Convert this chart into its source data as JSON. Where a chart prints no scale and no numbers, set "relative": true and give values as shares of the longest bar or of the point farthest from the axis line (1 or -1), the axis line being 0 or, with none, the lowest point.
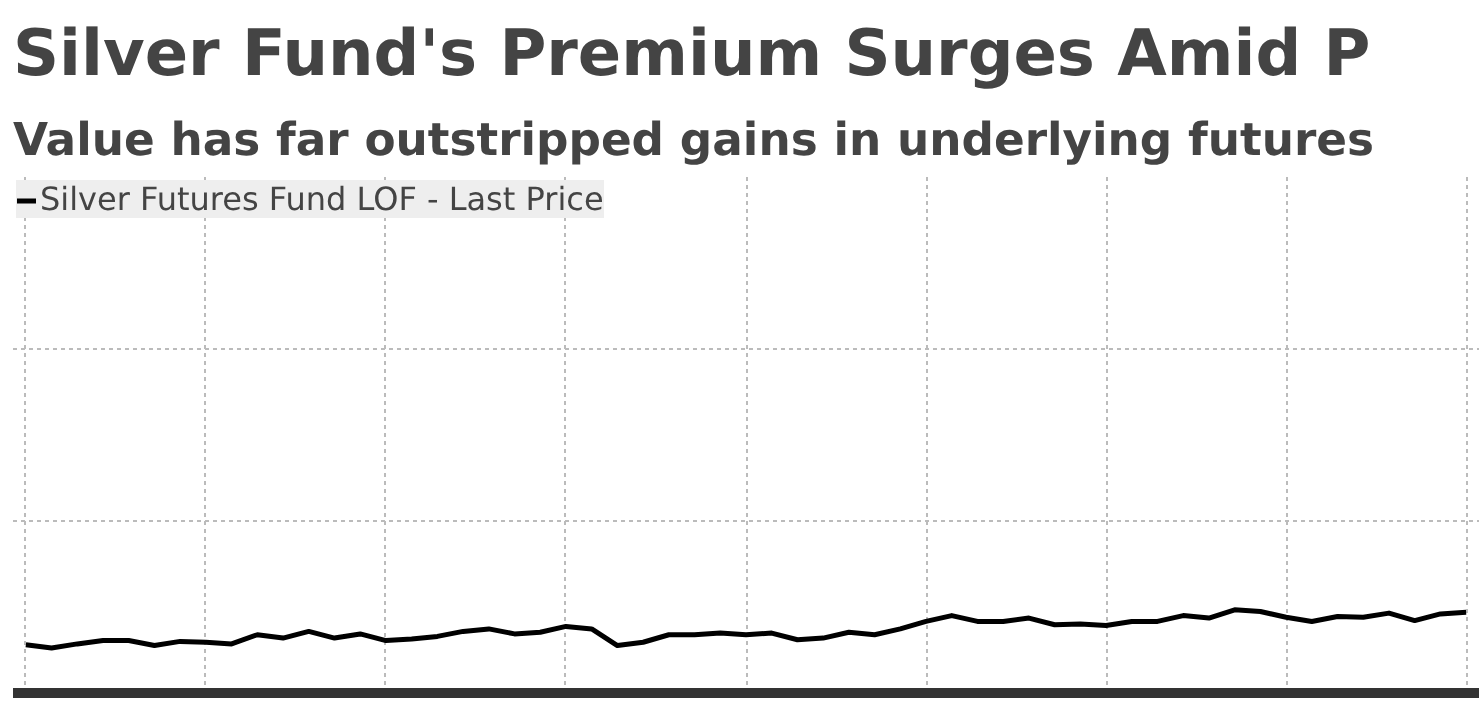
{
  "chart_data": {
    "type": "line",
    "title": "Silver Fund's Premium Surges Amid P",
    "subtitle": "Value has far outstripped gains in underlying futures",
    "relative": true,
    "grid": true,
    "legend": "top left",
    "tick_labels": false,
    "categories": [
      null,
      null,
      null,
      null,
      null,
      null,
      null,
      null,
      null,
      null,
      null,
      null,
      null,
      null,
      null,
      null,
      null,
      null,
      null,
      null,
      null,
      null,
      null,
      null,
      null,
      null,
      null,
      null,
      null,
      null,
      null,
      null,
      null,
      null,
      null,
      null,
      null,
      null,
      null,
      null,
      null,
      null,
      null,
      null,
      null,
      null,
      null,
      null,
      null,
      null,
      null,
      null,
      null,
      null,
      null,
      null,
      null
    ],
    "series": [
      {
        "name": "Silver Futures Fund LOF - Last Price",
        "color": "#000000",
        "values": [
          0.58,
          0.54,
          0.59,
          0.63,
          0.63,
          0.57,
          0.62,
          0.61,
          0.59,
          0.7,
          0.66,
          0.74,
          0.66,
          0.71,
          0.63,
          0.65,
          0.68,
          0.74,
          0.77,
          0.71,
          0.73,
          0.8,
          0.77,
          0.57,
          0.61,
          0.7,
          0.7,
          0.72,
          0.7,
          0.72,
          0.64,
          0.66,
          0.73,
          0.7,
          0.77,
          0.86,
          0.93,
          0.86,
          0.86,
          0.9,
          0.82,
          0.83,
          0.81,
          0.86,
          0.86,
          0.93,
          0.9,
          1.0,
          0.98,
          0.91,
          0.86,
          0.92,
          0.91,
          0.96,
          0.87,
          0.95,
          0.97
        ]
      }
    ]
  }
}
